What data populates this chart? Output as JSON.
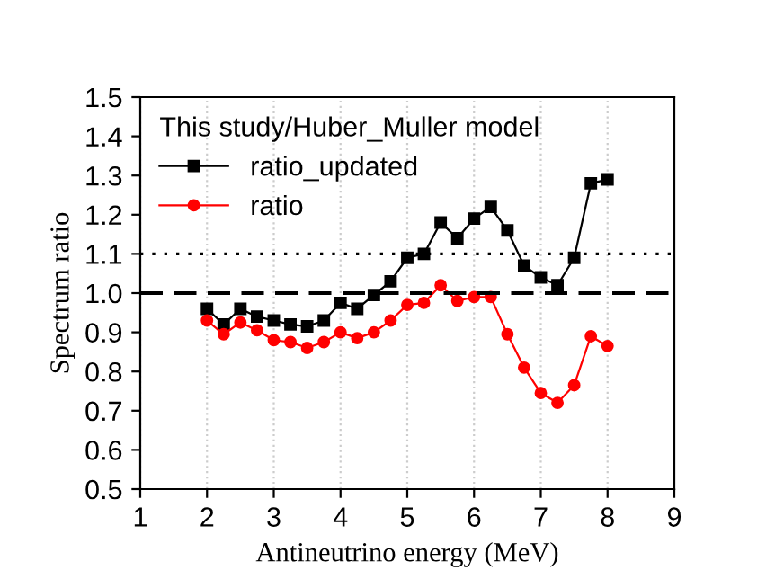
{
  "chart_data": {
    "type": "line",
    "xlabel": "Antineutrino energy (MeV)",
    "ylabel": "Spectrum ratio",
    "legend_title": "This study/Huber_Muller model",
    "x": [
      2,
      2.25,
      2.5,
      2.75,
      3,
      3.25,
      3.5,
      3.75,
      4,
      4.25,
      4.5,
      4.75,
      5,
      5.25,
      5.5,
      5.75,
      6,
      6.25,
      6.5,
      6.75,
      7,
      7.25,
      7.5,
      7.75,
      8
    ],
    "series": [
      {
        "name": "ratio_updated",
        "color": "#000000",
        "marker": "square",
        "values": [
          0.96,
          0.92,
          0.96,
          0.94,
          0.93,
          0.92,
          0.915,
          0.93,
          0.975,
          0.96,
          0.995,
          1.03,
          1.09,
          1.1,
          1.18,
          1.14,
          1.19,
          1.22,
          1.16,
          1.07,
          1.04,
          1.02,
          1.09,
          1.28,
          1.29
        ]
      },
      {
        "name": "ratio",
        "color": "#ff0000",
        "marker": "circle",
        "values": [
          0.93,
          0.895,
          0.925,
          0.905,
          0.88,
          0.875,
          0.86,
          0.875,
          0.9,
          0.885,
          0.9,
          0.93,
          0.97,
          0.975,
          1.02,
          0.98,
          0.99,
          0.99,
          0.895,
          0.81,
          0.745,
          0.72,
          0.765,
          0.89,
          0.865
        ]
      }
    ],
    "xlim": [
      1,
      9
    ],
    "xticks": [
      1,
      2,
      3,
      4,
      5,
      6,
      7,
      8,
      9
    ],
    "ylim": [
      0.5,
      1.5
    ],
    "yticks": [
      0.5,
      0.6,
      0.7,
      0.8,
      0.9,
      {
        "value": 1,
        "label": "1.0"
      },
      1.1,
      1.2,
      1.3,
      1.4,
      1.5
    ],
    "ref_lines": [
      {
        "axis": "y",
        "value": 1.1,
        "line_style": "dotted",
        "color": "#000000"
      },
      {
        "axis": "y",
        "value": 1.0,
        "line_style": "dashed",
        "color": "#000000"
      }
    ],
    "grid": "x",
    "legend": "top left"
  }
}
